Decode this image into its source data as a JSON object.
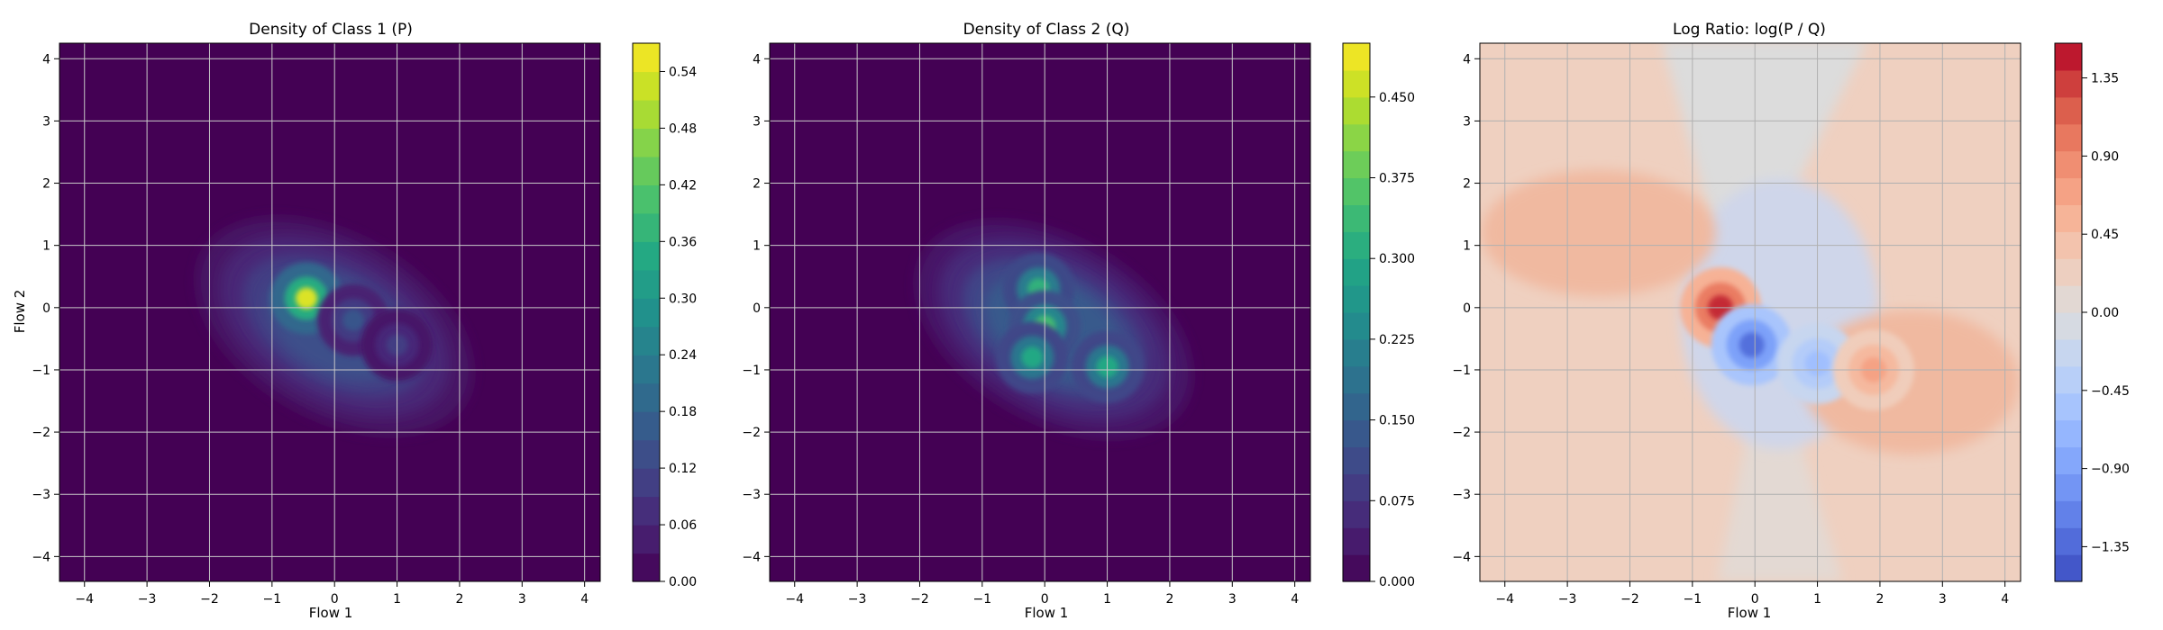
{
  "chart_data": [
    {
      "type": "heatmap",
      "title": "Density of Class 1 (P)",
      "xlabel": "Flow 1",
      "ylabel": "Flow 2",
      "xlim": [
        -4.4,
        4.25
      ],
      "ylim": [
        -4.4,
        4.25
      ],
      "xticks": [
        -4,
        -3,
        -2,
        -1,
        0,
        1,
        2,
        3,
        4
      ],
      "yticks": [
        -4,
        -3,
        -2,
        -1,
        0,
        1,
        2,
        3,
        4
      ],
      "grid": true,
      "colormap": "viridis",
      "color_range": [
        0,
        0.57
      ],
      "colorbar_ticks": [
        "0.00",
        "0.06",
        "0.12",
        "0.18",
        "0.24",
        "0.30",
        "0.36",
        "0.42",
        "0.48",
        "0.54"
      ],
      "colorbar_levels": 19,
      "peaks": [
        {
          "x": -0.45,
          "y": 0.15,
          "value": 0.54
        },
        {
          "x": 0.3,
          "y": -0.2,
          "value": 0.15
        },
        {
          "x": 1.0,
          "y": -0.6,
          "value": 0.1
        }
      ]
    },
    {
      "type": "heatmap",
      "title": "Density of Class 2 (Q)",
      "xlabel": "Flow 1",
      "ylabel": "",
      "xlim": [
        -4.4,
        4.25
      ],
      "ylim": [
        -4.4,
        4.25
      ],
      "xticks": [
        -4,
        -3,
        -2,
        -1,
        0,
        1,
        2,
        3,
        4
      ],
      "yticks": [
        -4,
        -3,
        -2,
        -1,
        0,
        1,
        2,
        3,
        4
      ],
      "grid": true,
      "colormap": "viridis",
      "color_range": [
        0,
        0.5
      ],
      "colorbar_ticks": [
        "0.000",
        "0.075",
        "0.150",
        "0.225",
        "0.300",
        "0.375",
        "0.450"
      ],
      "colorbar_levels": 20,
      "peaks": [
        {
          "x": -0.1,
          "y": 0.3,
          "value": 0.32
        },
        {
          "x": 0.0,
          "y": -0.3,
          "value": 0.35
        },
        {
          "x": -0.2,
          "y": -0.8,
          "value": 0.3
        },
        {
          "x": 1.0,
          "y": -0.95,
          "value": 0.3
        }
      ]
    },
    {
      "type": "heatmap",
      "title": "Log Ratio: log(P / Q)",
      "xlabel": "Flow 1",
      "ylabel": "",
      "xlim": [
        -4.4,
        4.25
      ],
      "ylim": [
        -4.4,
        4.25
      ],
      "xticks": [
        -4,
        -3,
        -2,
        -1,
        0,
        1,
        2,
        3,
        4
      ],
      "yticks": [
        -4,
        -3,
        -2,
        -1,
        0,
        1,
        2,
        3,
        4
      ],
      "grid": true,
      "colormap": "coolwarm",
      "color_range": [
        -1.55,
        1.55
      ],
      "colorbar_ticks": [
        "−1.35",
        "−0.90",
        "−0.45",
        "0.00",
        "0.45",
        "0.90",
        "1.35"
      ],
      "colorbar_levels": 20,
      "peaks": [
        {
          "x": -0.55,
          "y": 0.0,
          "value": 1.4
        },
        {
          "x": -0.05,
          "y": -0.6,
          "value": -1.3
        },
        {
          "x": 1.0,
          "y": -0.9,
          "value": -0.6
        },
        {
          "x": 1.9,
          "y": -1.0,
          "value": 0.7
        }
      ]
    }
  ]
}
